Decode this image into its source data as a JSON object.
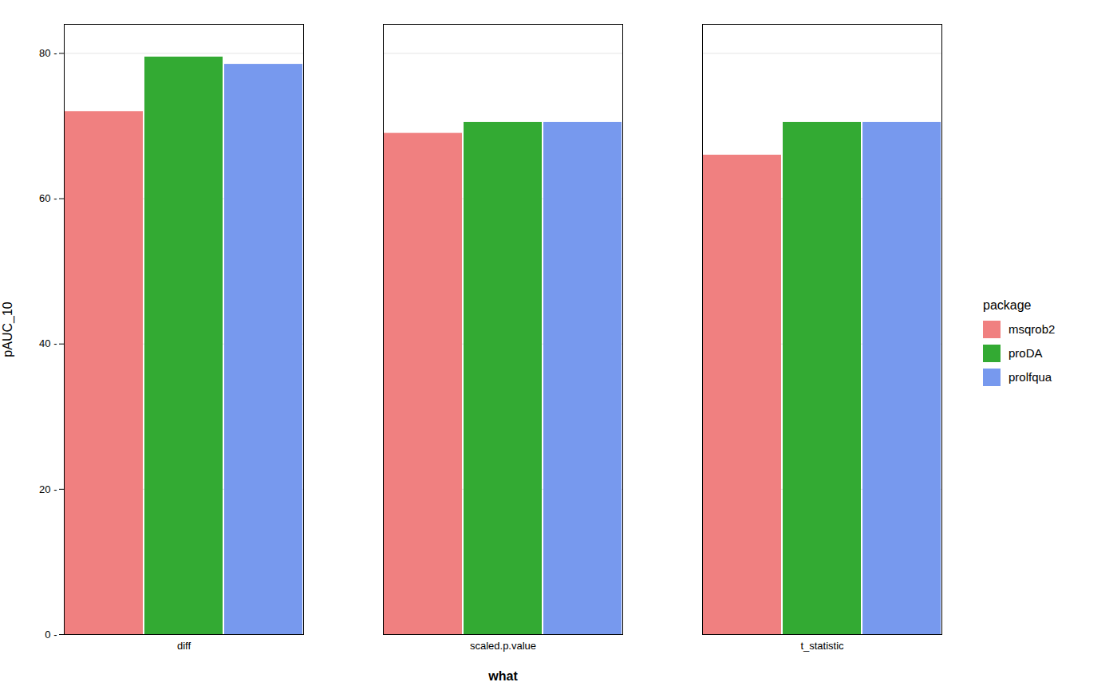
{
  "chart_data": {
    "type": "bar",
    "categories": [
      "diff",
      "scaled.p.value",
      "t_statistic"
    ],
    "series": [
      {
        "name": "msqrob2",
        "color": "#F08080",
        "values": [
          72.0,
          69.0,
          66.0
        ]
      },
      {
        "name": "proDA",
        "color": "#33AA33",
        "values": [
          79.5,
          70.5,
          70.5
        ]
      },
      {
        "name": "prolfqua",
        "color": "#7799EE",
        "values": [
          78.5,
          70.5,
          70.5
        ]
      }
    ],
    "xlabel": "what",
    "ylabel": "pAUC_10",
    "legend_title": "package",
    "ylim": [
      0,
      84
    ],
    "yticks": [
      {
        "value": 0,
        "label": "0 -"
      },
      {
        "value": 20,
        "label": "20 -"
      },
      {
        "value": 40,
        "label": "40 -"
      },
      {
        "value": 60,
        "label": "60 -"
      },
      {
        "value": 80,
        "label": "80 -"
      }
    ],
    "grid": true,
    "legend": "right"
  }
}
